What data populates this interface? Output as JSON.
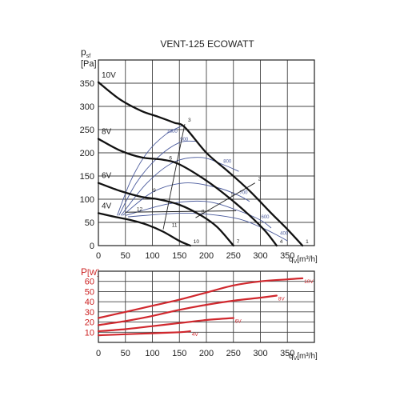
{
  "title": "VENT-125 ECOWATT",
  "colors": {
    "fan_curve": "#111111",
    "rpm_curve": "#4a5a9c",
    "power_curve": "#d0282e",
    "power_axis": "#cc2222",
    "grid": "#444444"
  },
  "chart_data": [
    {
      "type": "line",
      "title": "VENT-125 ECOWATT",
      "ylabel_main": "p",
      "ylabel_sub": "sf",
      "yunit": "[Pa]",
      "xlabel_main": "q",
      "xlabel_sub": "V",
      "xunit": "[m³/h]",
      "xlim": [
        0,
        400
      ],
      "ylim": [
        0,
        400
      ],
      "xticks": [
        0,
        50,
        100,
        150,
        200,
        250,
        300,
        350
      ],
      "yticks": [
        0,
        50,
        100,
        150,
        200,
        250,
        300,
        350
      ],
      "grid": true,
      "series": [
        {
          "name": "10V",
          "x": [
            0,
            40,
            80,
            110,
            140,
            160,
            200,
            240,
            280,
            320,
            350,
            378
          ],
          "y": [
            352,
            315,
            290,
            278,
            265,
            255,
            200,
            160,
            118,
            70,
            35,
            0
          ]
        },
        {
          "name": "8V",
          "x": [
            0,
            40,
            80,
            120,
            150,
            200,
            240,
            280,
            310,
            330
          ],
          "y": [
            230,
            205,
            190,
            185,
            175,
            140,
            105,
            65,
            30,
            0
          ]
        },
        {
          "name": "6V",
          "x": [
            0,
            40,
            80,
            110,
            150,
            190,
            220,
            250
          ],
          "y": [
            135,
            118,
            105,
            100,
            88,
            65,
            40,
            0
          ]
        },
        {
          "name": "4V",
          "x": [
            0,
            30,
            60,
            90,
            120,
            150,
            170
          ],
          "y": [
            70,
            62,
            55,
            45,
            30,
            10,
            0
          ]
        }
      ],
      "rpm_lines": [
        {
          "label": "1000",
          "x": [
            35,
            60,
            90,
            125,
            155
          ],
          "y": [
            65,
            140,
            200,
            240,
            258
          ]
        },
        {
          "label": "900",
          "x": [
            38,
            70,
            110,
            150,
            180
          ],
          "y": [
            65,
            135,
            190,
            222,
            225
          ]
        },
        {
          "label": "800",
          "x": [
            42,
            90,
            140,
            190,
            230,
            260
          ],
          "y": [
            65,
            135,
            180,
            190,
            175,
            160
          ]
        },
        {
          "label": "700",
          "x": [
            45,
            100,
            160,
            220,
            260,
            280
          ],
          "y": [
            65,
            115,
            135,
            125,
            108,
            95
          ]
        },
        {
          "label": "600",
          "x": [
            50,
            130,
            200,
            260,
            300,
            320
          ],
          "y": [
            65,
            90,
            95,
            75,
            55,
            38
          ]
        },
        {
          "label": "400",
          "x": [
            55,
            160,
            250,
            300,
            335,
            350
          ],
          "y": [
            62,
            70,
            60,
            40,
            20,
            10
          ]
        }
      ],
      "point_labels": [
        {
          "label": "1",
          "x": 378,
          "y": 0
        },
        {
          "label": "2",
          "x": 290,
          "y": 135
        },
        {
          "label": "3",
          "x": 160,
          "y": 262
        },
        {
          "label": "4",
          "x": 330,
          "y": 0
        },
        {
          "label": "5",
          "x": 240,
          "y": 102
        },
        {
          "label": "6",
          "x": 125,
          "y": 180
        },
        {
          "label": "7",
          "x": 250,
          "y": 0
        },
        {
          "label": "8",
          "x": 185,
          "y": 65
        },
        {
          "label": "9",
          "x": 95,
          "y": 110
        },
        {
          "label": "10",
          "x": 170,
          "y": 0
        },
        {
          "label": "11",
          "x": 130,
          "y": 35
        },
        {
          "label": "12",
          "x": 65,
          "y": 70
        }
      ],
      "diagonals": [
        {
          "x": [
            160,
            120
          ],
          "y": [
            262,
            35
          ]
        },
        {
          "x": [
            290,
            180
          ],
          "y": [
            135,
            60
          ]
        },
        {
          "x": [
            255,
            50
          ],
          "y": [
            75,
            72
          ]
        }
      ]
    },
    {
      "type": "line",
      "ylabel_main": "P",
      "yunit": "[W]",
      "xlabel_main": "q",
      "xlabel_sub": "V",
      "xunit": "[m³/h]",
      "xlim": [
        0,
        400
      ],
      "ylim": [
        0,
        70
      ],
      "xticks": [
        0,
        50,
        100,
        150,
        200,
        250,
        300,
        350
      ],
      "xtick_labels": [
        "0",
        "50",
        "100",
        "150",
        "200",
        "250",
        "300",
        "350"
      ],
      "yticks": [
        0,
        10,
        20,
        30,
        40,
        50,
        60
      ],
      "grid": true,
      "series": [
        {
          "name": "10V",
          "x": [
            0,
            50,
            100,
            150,
            200,
            250,
            300,
            350,
            378
          ],
          "y": [
            24,
            30,
            36,
            42,
            49,
            56,
            60,
            62,
            63
          ]
        },
        {
          "name": "8V",
          "x": [
            0,
            50,
            100,
            150,
            200,
            250,
            300,
            330
          ],
          "y": [
            17,
            21,
            26,
            32,
            37,
            41,
            44,
            46
          ]
        },
        {
          "name": "6V",
          "x": [
            0,
            50,
            100,
            150,
            200,
            250
          ],
          "y": [
            11,
            13,
            16,
            19,
            22,
            24
          ]
        },
        {
          "name": "4V",
          "x": [
            0,
            50,
            100,
            150,
            170
          ],
          "y": [
            7,
            8,
            9,
            10,
            11
          ]
        }
      ]
    }
  ]
}
